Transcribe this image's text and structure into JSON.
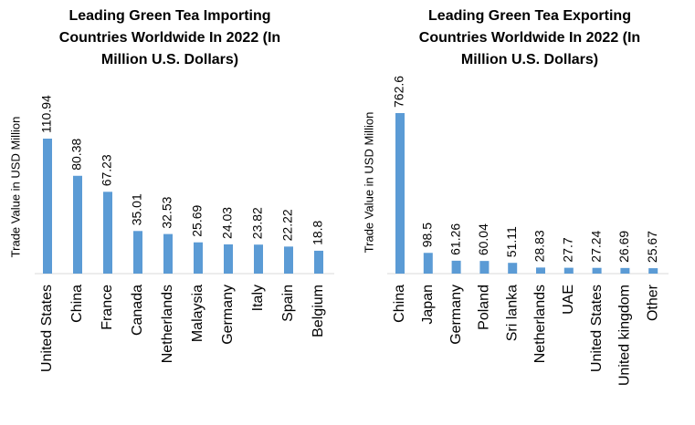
{
  "chart_data": [
    {
      "type": "bar",
      "title": "Leading Green Tea Importing Countries Worldwide In 2022 (In Million U.S. Dollars)",
      "y_label": "Trade Value in USD Million",
      "color": "#5b9bd5",
      "categories": [
        "United States",
        "China",
        "France",
        "Canada",
        "Netherlands",
        "Malaysia",
        "Germany",
        "Italy",
        "Spain",
        "Belgium"
      ],
      "values": [
        110.94,
        80.38,
        67.23,
        35.01,
        32.53,
        25.69,
        24.03,
        23.82,
        22.22,
        18.8
      ]
    },
    {
      "type": "bar",
      "title": "Leading Green Tea Exporting Countries Worldwide In 2022 (In Million U.S. Dollars)",
      "y_label": "Trade Value in USD Million",
      "color": "#5b9bd5",
      "categories": [
        "China",
        "Japan",
        "Germany",
        "Poland",
        "Sri lanka",
        "Netherlands",
        "UAE",
        "United States",
        "United kingdom",
        "Other"
      ],
      "values": [
        762.6,
        98.5,
        61.26,
        60.04,
        51.11,
        28.83,
        27.7,
        27.24,
        26.69,
        25.67
      ]
    }
  ]
}
